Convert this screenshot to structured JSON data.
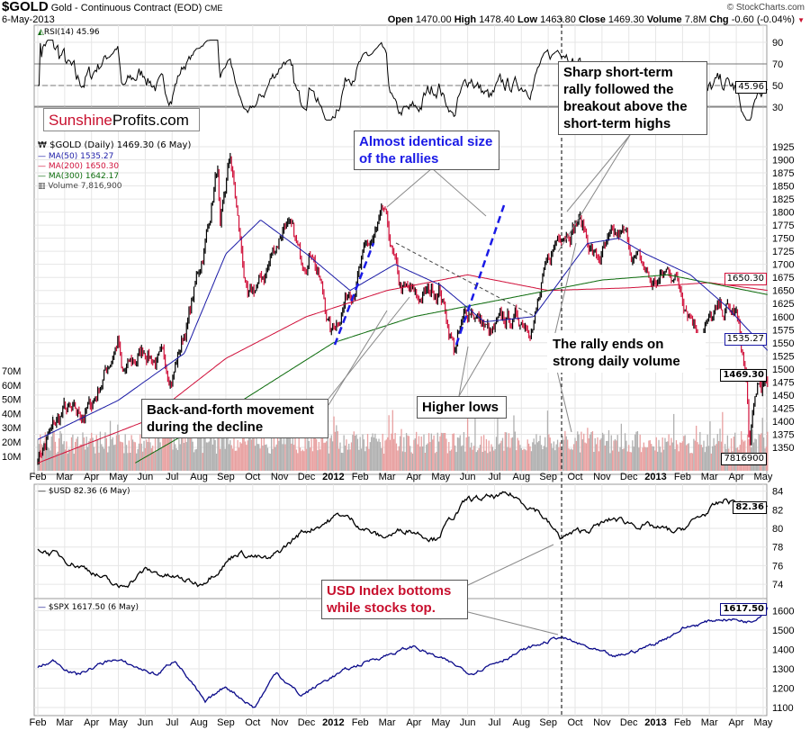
{
  "header": {
    "symbol": "$GOLD",
    "description": "Gold - Continuous Contract (EOD)",
    "exchange": "CME",
    "date": "6-May-2013",
    "brand": "© StockCharts.com",
    "ohlc": [
      {
        "k": "Open",
        "v": "1470.00"
      },
      {
        "k": "High",
        "v": "1478.40"
      },
      {
        "k": "Low",
        "v": "1463.80"
      },
      {
        "k": "Close",
        "v": "1469.30"
      },
      {
        "k": "Volume",
        "v": "7.8M"
      },
      {
        "k": "Chg",
        "v": "-0.60 (-0.04%)"
      }
    ]
  },
  "logo": {
    "part1": "Sunshine",
    "part2": "Profits.com"
  },
  "colors": {
    "ma50": "#1a1aa6",
    "ma200": "#d0103a",
    "ma300": "#0a6a0a",
    "up": "#000000",
    "down": "#d0103a",
    "usd": "#000000",
    "spx": "#0a0a8a",
    "volume": "#b0b0b0",
    "volume_down": "#e8a0a0",
    "annotation_blue": "#1a1ae6",
    "annotation_red": "#c8102e"
  },
  "chart_data": [
    {
      "type": "line",
      "panel": "rsi",
      "legend": "RSI(14) 45.96",
      "last_tag": "45.96",
      "yticks": [
        90,
        70,
        50,
        30
      ],
      "levels": [
        70,
        30
      ],
      "note": "computed RSI(14) of $GOLD closes"
    },
    {
      "type": "candlestick",
      "panel": "gold",
      "legend": {
        "title": "$GOLD (Daily) 1469.30 (6 May)",
        "ma50": "MA(50) 1535.27",
        "ma200": "MA(200) 1650.30",
        "ma300": "MA(300) 1642.17",
        "volume": "Volume 7,816,900"
      },
      "ylim": [
        1325,
        1935
      ],
      "yticks": [
        1925,
        1900,
        1875,
        1850,
        1825,
        1800,
        1775,
        1750,
        1725,
        1700,
        1675,
        1650,
        1625,
        1600,
        1575,
        1550,
        1525,
        1500,
        1475,
        1450,
        1425,
        1400,
        1375,
        1350
      ],
      "vol_ticks": [
        "70M",
        "60M",
        "50M",
        "40M",
        "30M",
        "20M",
        "10M"
      ],
      "tags": {
        "ma200": "1650.30",
        "ma50": "1535.27",
        "close": "1469.30",
        "volume": "7816900"
      },
      "close": [
        [
          "2011-02-01",
          1335
        ],
        [
          "2011-03-01",
          1420
        ],
        [
          "2011-03-15",
          1400
        ],
        [
          "2011-04-01",
          1430
        ],
        [
          "2011-05-01",
          1560
        ],
        [
          "2011-05-05",
          1480
        ],
        [
          "2011-06-01",
          1540
        ],
        [
          "2011-07-01",
          1490
        ],
        [
          "2011-07-20",
          1600
        ],
        [
          "2011-08-10",
          1760
        ],
        [
          "2011-08-22",
          1890
        ],
        [
          "2011-08-25",
          1750
        ],
        [
          "2011-09-06",
          1900
        ],
        [
          "2011-09-26",
          1620
        ],
        [
          "2011-10-15",
          1680
        ],
        [
          "2011-11-08",
          1790
        ],
        [
          "2011-11-25",
          1700
        ],
        [
          "2011-12-08",
          1740
        ],
        [
          "2011-12-29",
          1565
        ],
        [
          "2012-01-15",
          1640
        ],
        [
          "2012-02-28",
          1785
        ],
        [
          "2012-03-15",
          1650
        ],
        [
          "2012-04-05",
          1630
        ],
        [
          "2012-04-30",
          1660
        ],
        [
          "2012-05-16",
          1540
        ],
        [
          "2012-06-05",
          1620
        ],
        [
          "2012-06-28",
          1560
        ],
        [
          "2012-07-15",
          1590
        ],
        [
          "2012-08-15",
          1600
        ],
        [
          "2012-09-15",
          1770
        ],
        [
          "2012-10-05",
          1790
        ],
        [
          "2012-10-25",
          1710
        ],
        [
          "2012-11-25",
          1750
        ],
        [
          "2012-12-28",
          1660
        ],
        [
          "2013-01-20",
          1690
        ],
        [
          "2013-02-20",
          1580
        ],
        [
          "2013-03-20",
          1610
        ],
        [
          "2013-04-01",
          1600
        ],
        [
          "2013-04-12",
          1480
        ],
        [
          "2013-04-16",
          1350
        ],
        [
          "2013-04-25",
          1460
        ],
        [
          "2013-05-06",
          1469.3
        ]
      ],
      "ma50": [
        [
          "2011-02-01",
          1365
        ],
        [
          "2011-05-01",
          1440
        ],
        [
          "2011-07-15",
          1530
        ],
        [
          "2011-09-01",
          1720
        ],
        [
          "2011-10-10",
          1785
        ],
        [
          "2011-12-01",
          1720
        ],
        [
          "2012-01-20",
          1650
        ],
        [
          "2012-03-10",
          1700
        ],
        [
          "2012-05-01",
          1660
        ],
        [
          "2012-06-20",
          1590
        ],
        [
          "2012-08-15",
          1600
        ],
        [
          "2012-10-15",
          1740
        ],
        [
          "2012-11-20",
          1750
        ],
        [
          "2012-12-20",
          1720
        ],
        [
          "2013-02-10",
          1680
        ],
        [
          "2013-03-20",
          1620
        ],
        [
          "2013-05-06",
          1535.27
        ]
      ],
      "ma200": [
        [
          "2011-02-01",
          1320
        ],
        [
          "2011-06-01",
          1400
        ],
        [
          "2011-09-01",
          1520
        ],
        [
          "2011-12-01",
          1600
        ],
        [
          "2012-03-01",
          1650
        ],
        [
          "2012-06-01",
          1680
        ],
        [
          "2012-09-01",
          1650
        ],
        [
          "2012-12-01",
          1655
        ],
        [
          "2013-03-01",
          1665
        ],
        [
          "2013-05-06",
          1650.3
        ]
      ],
      "ma300": [
        [
          "2011-05-20",
          1320
        ],
        [
          "2011-09-01",
          1420
        ],
        [
          "2012-01-01",
          1550
        ],
        [
          "2012-04-01",
          1600
        ],
        [
          "2012-08-01",
          1640
        ],
        [
          "2012-11-01",
          1670
        ],
        [
          "2013-01-15",
          1680
        ],
        [
          "2013-05-06",
          1642.17
        ]
      ]
    },
    {
      "type": "line",
      "panel": "usd",
      "legend": "$USD 82.36 (6 May)",
      "last_tag": "82.36",
      "yticks": [
        84,
        82,
        80,
        78,
        76,
        74
      ],
      "values": [
        [
          "2011-02-01",
          78
        ],
        [
          "2011-04-01",
          75.5
        ],
        [
          "2011-05-01",
          73.5
        ],
        [
          "2011-06-01",
          75.5
        ],
        [
          "2011-08-01",
          74
        ],
        [
          "2011-09-15",
          77.5
        ],
        [
          "2011-10-20",
          76.5
        ],
        [
          "2011-11-25",
          79.5
        ],
        [
          "2012-01-10",
          81.5
        ],
        [
          "2012-02-25",
          79
        ],
        [
          "2012-03-25",
          80
        ],
        [
          "2012-04-25",
          79
        ],
        [
          "2012-06-01",
          83
        ],
        [
          "2012-07-20",
          83.5
        ],
        [
          "2012-08-20",
          82
        ],
        [
          "2012-09-14",
          79
        ],
        [
          "2012-10-20",
          80
        ],
        [
          "2012-11-15",
          81
        ],
        [
          "2013-01-25",
          79.5
        ],
        [
          "2013-02-25",
          81.5
        ],
        [
          "2013-03-20",
          83
        ],
        [
          "2013-04-20",
          82.5
        ],
        [
          "2013-05-06",
          82.36
        ]
      ]
    },
    {
      "type": "line",
      "panel": "spx",
      "legend": "$SPX 1617.50 (6 May)",
      "last_tag": "1617.50",
      "yticks": [
        1600,
        1500,
        1400,
        1300,
        1200,
        1100
      ],
      "values": [
        [
          "2011-02-01",
          1310
        ],
        [
          "2011-02-20",
          1340
        ],
        [
          "2011-03-15",
          1270
        ],
        [
          "2011-04-25",
          1350
        ],
        [
          "2011-06-15",
          1270
        ],
        [
          "2011-07-05",
          1350
        ],
        [
          "2011-08-08",
          1120
        ],
        [
          "2011-09-01",
          1210
        ],
        [
          "2011-10-03",
          1100
        ],
        [
          "2011-10-28",
          1285
        ],
        [
          "2011-11-25",
          1160
        ],
        [
          "2011-12-30",
          1260
        ],
        [
          "2012-02-15",
          1350
        ],
        [
          "2012-04-01",
          1415
        ],
        [
          "2012-06-04",
          1280
        ],
        [
          "2012-07-20",
          1370
        ],
        [
          "2012-09-14",
          1465
        ],
        [
          "2012-11-15",
          1355
        ],
        [
          "2012-12-31",
          1430
        ],
        [
          "2013-02-01",
          1510
        ],
        [
          "2013-03-15",
          1560
        ],
        [
          "2013-04-18",
          1545
        ],
        [
          "2013-05-06",
          1617.5
        ]
      ]
    }
  ],
  "xaxis": {
    "start": "2011-02-01",
    "labels": [
      "Feb",
      "Mar",
      "Apr",
      "May",
      "Jun",
      "Jul",
      "Aug",
      "Sep",
      "Oct",
      "Nov",
      "Dec",
      "2012",
      "Feb",
      "Mar",
      "Apr",
      "May",
      "Jun",
      "Jul",
      "Aug",
      "Sep",
      "Oct",
      "Nov",
      "Dec",
      "2013",
      "Feb",
      "Mar",
      "Apr",
      "May"
    ]
  },
  "annotations": {
    "sharp": "Sharp short-term rally followed the breakout above the short-term highs",
    "identical": "Almost identical size of the rallies",
    "rally_ends": "The rally ends on strong daily volume",
    "back_forth": "Back-and-forth movement during the decline",
    "higher_lows": "Higher lows",
    "usd_bottoms": "USD Index bottoms while stocks top."
  }
}
